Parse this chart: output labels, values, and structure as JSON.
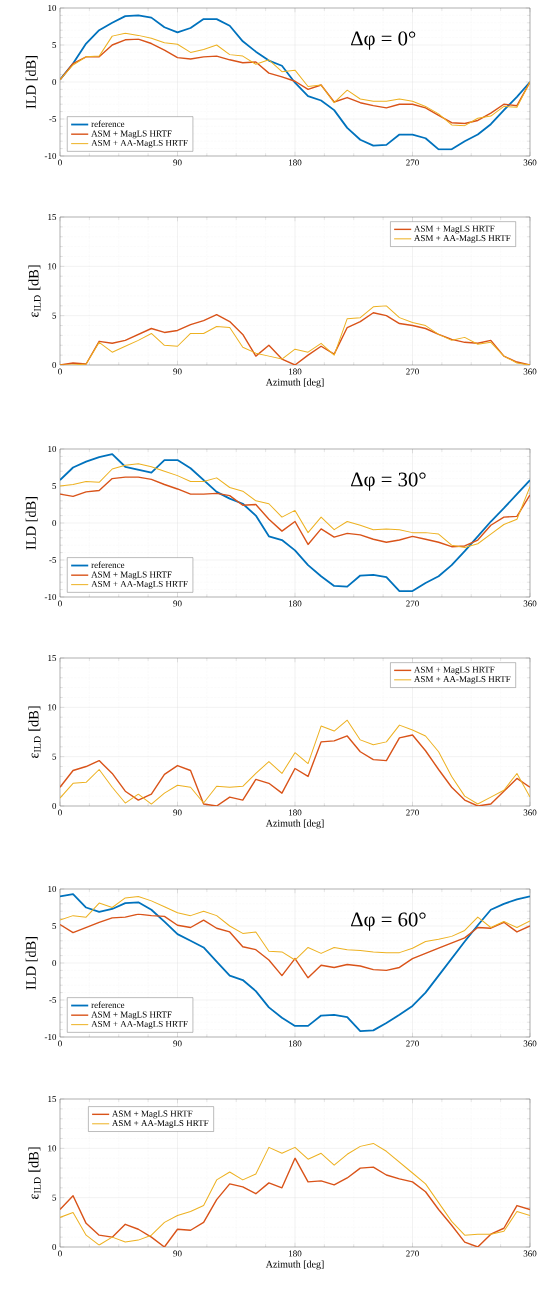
{
  "chart_data": [
    {
      "type": "line",
      "ylabel": "ILD [dB]",
      "annotations": [
        "Δφ = 0°"
      ],
      "grid": true,
      "legend": "bottom left",
      "xlim": [
        0,
        360
      ],
      "xticks": [
        0,
        90,
        180,
        270,
        360
      ],
      "ylim": [
        -10,
        10
      ],
      "yticks": [
        -10,
        -5,
        0,
        5,
        10
      ],
      "x": [
        0,
        10,
        20,
        30,
        40,
        50,
        60,
        70,
        80,
        90,
        100,
        110,
        120,
        130,
        140,
        150,
        160,
        170,
        180,
        190,
        200,
        210,
        220,
        230,
        240,
        250,
        260,
        270,
        280,
        290,
        300,
        310,
        320,
        330,
        340,
        350,
        360
      ],
      "series": [
        {
          "name": "reference",
          "color": "#0072bd",
          "values": [
            0.3,
            2.5,
            5.2,
            7.0,
            8.0,
            8.9,
            9.0,
            8.7,
            7.4,
            6.7,
            7.3,
            8.5,
            8.5,
            7.6,
            5.5,
            4.1,
            2.9,
            2.2,
            -0.1,
            -1.9,
            -2.5,
            -3.8,
            -6.2,
            -7.8,
            -8.6,
            -8.5,
            -7.1,
            -7.1,
            -7.6,
            -9.1,
            -9.1,
            -8.0,
            -7.1,
            -5.7,
            -3.8,
            -2.0,
            0
          ]
        },
        {
          "name": "ASM + MagLS HRTF",
          "color": "#d95319",
          "values": [
            0.3,
            2.5,
            3.4,
            3.4,
            5.0,
            5.7,
            5.8,
            5.2,
            4.3,
            3.3,
            3.1,
            3.4,
            3.5,
            3.0,
            2.6,
            2.7,
            1.2,
            0.7,
            0.1,
            -1.0,
            -0.4,
            -2.7,
            -2.1,
            -2.8,
            -3.2,
            -3.5,
            -3.0,
            -3.0,
            -3.5,
            -4.5,
            -5.5,
            -5.6,
            -5.2,
            -4.2,
            -3.0,
            -3.2,
            0
          ]
        },
        {
          "name": "ASM + AA-MagLS HRTF",
          "color": "#edb120",
          "values": [
            0.3,
            2.3,
            3.4,
            3.5,
            6.2,
            6.6,
            6.3,
            5.9,
            5.3,
            5.1,
            4.0,
            4.4,
            5.0,
            3.7,
            3.5,
            2.4,
            3.0,
            1.4,
            1.6,
            -0.6,
            -0.4,
            -2.8,
            -1.1,
            -2.3,
            -2.6,
            -2.6,
            -2.3,
            -2.6,
            -3.3,
            -4.3,
            -5.8,
            -5.9,
            -4.9,
            -4.6,
            -3.3,
            -3.4,
            0
          ]
        }
      ]
    },
    {
      "type": "line",
      "ylabel": "ε$_{ILD}$ [dB]",
      "xlabel": "Azimuth [deg]",
      "grid": true,
      "legend": "top right",
      "xlim": [
        0,
        360
      ],
      "xticks": [
        0,
        90,
        180,
        270,
        360
      ],
      "ylim": [
        0,
        15
      ],
      "yticks": [
        0,
        5,
        10,
        15
      ],
      "x": [
        0,
        10,
        20,
        30,
        40,
        50,
        60,
        70,
        80,
        90,
        100,
        110,
        120,
        130,
        140,
        150,
        160,
        170,
        180,
        190,
        200,
        210,
        220,
        230,
        240,
        250,
        260,
        270,
        280,
        290,
        300,
        310,
        320,
        330,
        340,
        350,
        360
      ],
      "series": [
        {
          "name": "ASM + MagLS HRTF",
          "color": "#d95319",
          "values": [
            0,
            0.2,
            0.1,
            2.4,
            2.2,
            2.5,
            3.1,
            3.7,
            3.3,
            3.5,
            4.1,
            4.5,
            5.1,
            4.4,
            3.1,
            0.9,
            2.0,
            0.6,
            0,
            1.0,
            1.9,
            1.1,
            3.8,
            4.4,
            5.3,
            5.0,
            4.2,
            4.0,
            3.7,
            3.1,
            2.6,
            2.3,
            2.2,
            2.5,
            0.9,
            0.3,
            0
          ]
        },
        {
          "name": "ASM + AA-MagLS HRTF",
          "color": "#edb120",
          "values": [
            0,
            0,
            0.1,
            2.3,
            1.3,
            1.9,
            2.5,
            3.2,
            2.0,
            1.9,
            3.2,
            3.2,
            3.9,
            3.8,
            1.8,
            1.2,
            0.9,
            0.6,
            1.6,
            1.3,
            2.2,
            1.0,
            4.7,
            4.8,
            5.9,
            6.0,
            4.8,
            4.3,
            4.0,
            3.1,
            2.5,
            2.8,
            2.1,
            2.3,
            0.9,
            0.2,
            0
          ]
        }
      ]
    },
    {
      "type": "line",
      "ylabel": "ILD [dB]",
      "annotations": [
        "Δφ = 30°"
      ],
      "grid": true,
      "legend": "bottom left",
      "xlim": [
        0,
        360
      ],
      "xticks": [
        0,
        90,
        180,
        270,
        360
      ],
      "ylim": [
        -10,
        10
      ],
      "yticks": [
        -10,
        -5,
        0,
        5,
        10
      ],
      "x": [
        0,
        10,
        20,
        30,
        40,
        50,
        60,
        70,
        80,
        90,
        100,
        110,
        120,
        130,
        140,
        150,
        160,
        170,
        180,
        190,
        200,
        210,
        220,
        230,
        240,
        250,
        260,
        270,
        280,
        290,
        300,
        310,
        320,
        330,
        340,
        350,
        360
      ],
      "series": [
        {
          "name": "reference",
          "color": "#0072bd",
          "values": [
            5.8,
            7.5,
            8.3,
            8.9,
            9.3,
            7.6,
            7.2,
            6.8,
            8.5,
            8.5,
            7.4,
            5.8,
            4.2,
            3.3,
            2.6,
            1.0,
            -1.8,
            -2.3,
            -3.7,
            -5.7,
            -7.2,
            -8.5,
            -8.6,
            -7.1,
            -7.0,
            -7.3,
            -9.2,
            -9.2,
            -8.1,
            -7.2,
            -5.7,
            -3.8,
            -1.8,
            0.2,
            2.0,
            3.9,
            5.8
          ]
        },
        {
          "name": "ASM + MagLS HRTF",
          "color": "#d95319",
          "values": [
            3.9,
            3.6,
            4.2,
            4.4,
            6.0,
            6.2,
            6.2,
            5.9,
            5.2,
            4.6,
            3.9,
            3.9,
            4.0,
            3.7,
            2.4,
            2.5,
            0.5,
            -1.1,
            0.2,
            -2.9,
            -0.8,
            -1.9,
            -1.4,
            -1.6,
            -2.2,
            -2.6,
            -2.3,
            -1.8,
            -2.2,
            -2.6,
            -3.2,
            -3.1,
            -2.3,
            -0.3,
            0.8,
            0.9,
            3.8
          ]
        },
        {
          "name": "ASM + AA-MagLS HRTF",
          "color": "#edb120",
          "values": [
            5.0,
            5.2,
            5.6,
            5.5,
            7.3,
            7.8,
            8.0,
            7.6,
            7.0,
            6.4,
            5.6,
            5.6,
            6.1,
            4.8,
            4.3,
            3.0,
            2.6,
            0.8,
            1.7,
            -1.3,
            0.8,
            -0.9,
            0.2,
            -0.3,
            -0.9,
            -0.8,
            -0.9,
            -1.3,
            -1.3,
            -1.5,
            -3.0,
            -3.3,
            -2.8,
            -1.5,
            -0.2,
            0.5,
            4.9
          ]
        }
      ]
    },
    {
      "type": "line",
      "ylabel": "ε$_{ILD}$ [dB]",
      "xlabel": "Azimuth [deg]",
      "grid": true,
      "legend": "top right",
      "xlim": [
        0,
        360
      ],
      "xticks": [
        0,
        90,
        180,
        270,
        360
      ],
      "ylim": [
        0,
        15
      ],
      "yticks": [
        0,
        5,
        10,
        15
      ],
      "x": [
        0,
        10,
        20,
        30,
        40,
        50,
        60,
        70,
        80,
        90,
        100,
        110,
        120,
        130,
        140,
        150,
        160,
        170,
        180,
        190,
        200,
        210,
        220,
        230,
        240,
        250,
        260,
        270,
        280,
        290,
        300,
        310,
        320,
        330,
        340,
        350,
        360
      ],
      "series": [
        {
          "name": "ASM + MagLS HRTF",
          "color": "#d95319",
          "values": [
            1.9,
            3.6,
            4.0,
            4.6,
            3.3,
            1.5,
            0.6,
            1.2,
            3.2,
            4.1,
            3.6,
            0.2,
            0,
            0.9,
            0.6,
            2.7,
            2.3,
            1.3,
            3.8,
            3.0,
            6.5,
            6.6,
            7.1,
            5.5,
            4.7,
            4.6,
            6.9,
            7.2,
            5.6,
            3.7,
            1.9,
            0.6,
            0,
            0.2,
            1.5,
            2.8,
            1.9
          ]
        },
        {
          "name": "ASM + AA-MagLS HRTF",
          "color": "#edb120",
          "values": [
            0.8,
            2.3,
            2.4,
            3.7,
            1.9,
            0.3,
            1.2,
            0.2,
            1.3,
            2.1,
            1.9,
            0.3,
            2.0,
            1.9,
            2.0,
            3.3,
            4.5,
            3.3,
            5.4,
            4.3,
            8.1,
            7.6,
            8.7,
            6.7,
            6.2,
            6.5,
            8.2,
            7.7,
            7.1,
            5.5,
            3.0,
            1.0,
            0.2,
            0.9,
            1.6,
            3.3,
            0.9
          ]
        }
      ]
    },
    {
      "type": "line",
      "ylabel": "ILD [dB]",
      "annotations": [
        "Δφ = 60°"
      ],
      "grid": true,
      "legend": "bottom left",
      "xlim": [
        0,
        360
      ],
      "xticks": [
        0,
        90,
        180,
        270,
        360
      ],
      "ylim": [
        -10,
        10
      ],
      "yticks": [
        -10,
        -5,
        0,
        5,
        10
      ],
      "x": [
        0,
        10,
        20,
        30,
        40,
        50,
        60,
        70,
        80,
        90,
        100,
        110,
        120,
        130,
        140,
        150,
        160,
        170,
        180,
        190,
        200,
        210,
        220,
        230,
        240,
        250,
        260,
        270,
        280,
        290,
        300,
        310,
        320,
        330,
        340,
        350,
        360
      ],
      "series": [
        {
          "name": "reference",
          "color": "#0072bd",
          "values": [
            9.0,
            9.3,
            7.5,
            6.9,
            7.3,
            8.1,
            8.2,
            7.2,
            5.6,
            3.9,
            3.0,
            2.1,
            0.2,
            -1.7,
            -2.3,
            -3.8,
            -6.0,
            -7.4,
            -8.5,
            -8.5,
            -7.1,
            -7.0,
            -7.3,
            -9.2,
            -9.1,
            -8.1,
            -7.0,
            -5.8,
            -4.0,
            -1.7,
            0.6,
            2.9,
            5.1,
            7.2,
            8.0,
            8.6,
            9.0
          ]
        },
        {
          "name": "ASM + MagLS HRTF",
          "color": "#d95319",
          "values": [
            5.2,
            4.1,
            4.8,
            5.5,
            6.1,
            6.2,
            6.6,
            6.4,
            6.3,
            5.1,
            4.8,
            5.8,
            4.7,
            4.2,
            2.2,
            1.8,
            0.4,
            -1.7,
            0.6,
            -2.0,
            -0.3,
            -0.6,
            -0.2,
            -0.4,
            -0.9,
            -1.0,
            -0.6,
            0.6,
            1.3,
            2.0,
            2.7,
            3.4,
            4.8,
            4.7,
            5.5,
            4.2,
            5.0
          ]
        },
        {
          "name": "ASM + AA-MagLS HRTF",
          "color": "#edb120",
          "values": [
            5.8,
            6.4,
            6.2,
            8.1,
            7.5,
            8.8,
            9.0,
            8.4,
            7.6,
            6.8,
            6.4,
            7.0,
            6.4,
            5.0,
            4.0,
            4.2,
            1.6,
            1.5,
            0.4,
            2.1,
            1.3,
            2.1,
            1.8,
            1.7,
            1.5,
            1.4,
            1.4,
            2.0,
            2.9,
            3.2,
            3.6,
            4.4,
            6.2,
            4.8,
            5.6,
            4.8,
            5.7
          ]
        }
      ]
    },
    {
      "type": "line",
      "ylabel": "ε$_{ILD}$ [dB]",
      "xlabel": "Azimuth [deg]",
      "grid": true,
      "legend": "top left",
      "xlim": [
        0,
        360
      ],
      "xticks": [
        0,
        90,
        180,
        270,
        360
      ],
      "ylim": [
        0,
        15
      ],
      "yticks": [
        0,
        5,
        10,
        15
      ],
      "x": [
        0,
        10,
        20,
        30,
        40,
        50,
        60,
        70,
        80,
        90,
        100,
        110,
        120,
        130,
        140,
        150,
        160,
        170,
        180,
        190,
        200,
        210,
        220,
        230,
        240,
        250,
        260,
        270,
        280,
        290,
        300,
        310,
        320,
        330,
        340,
        350,
        360
      ],
      "series": [
        {
          "name": "ASM + MagLS HRTF",
          "color": "#d95319",
          "values": [
            3.8,
            5.2,
            2.4,
            1.2,
            1.0,
            2.3,
            1.8,
            1.0,
            0,
            1.8,
            1.7,
            2.5,
            4.8,
            6.4,
            6.1,
            5.4,
            6.5,
            6.0,
            9.0,
            6.6,
            6.7,
            6.3,
            7.0,
            8.0,
            8.1,
            7.3,
            6.9,
            6.6,
            5.6,
            3.8,
            2.2,
            0.5,
            0,
            1.3,
            1.9,
            4.2,
            3.8
          ]
        },
        {
          "name": "ASM + AA-MagLS HRTF",
          "color": "#edb120",
          "values": [
            3.0,
            3.5,
            1.2,
            0.2,
            1.0,
            0.5,
            0.7,
            1.2,
            2.5,
            3.2,
            3.6,
            4.2,
            6.8,
            7.6,
            6.8,
            7.4,
            10.1,
            9.5,
            10.1,
            8.9,
            9.5,
            8.3,
            9.4,
            10.2,
            10.5,
            9.7,
            8.6,
            7.5,
            6.4,
            4.5,
            2.6,
            1.2,
            1.3,
            1.3,
            1.6,
            3.6,
            3.2
          ]
        }
      ]
    }
  ]
}
